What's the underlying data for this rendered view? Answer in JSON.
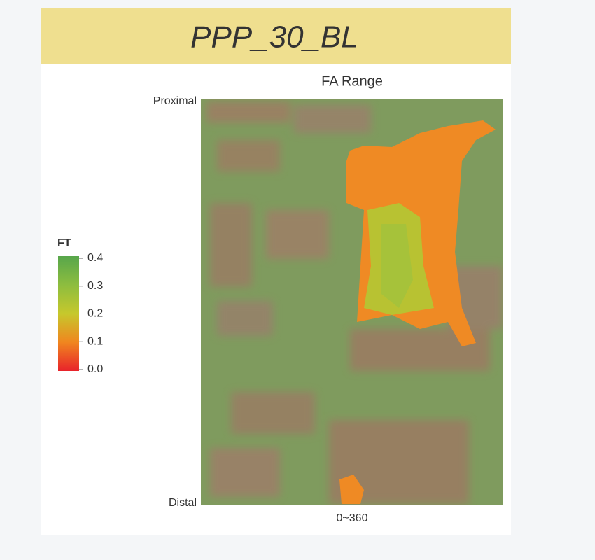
{
  "chart_data": {
    "type": "heatmap",
    "title": "PPP_30_BL",
    "subtitle": "FA Range",
    "x_label": "0~360",
    "y_top_label": "Proximal",
    "y_bottom_label": "Distal",
    "colorbar": {
      "title": "FT",
      "clim": [
        0,
        0.4
      ],
      "ticks": [
        {
          "value": 0,
          "label": "0.0"
        },
        0.1,
        0.2,
        0.3,
        0.4
      ],
      "colors": [
        "#e8232b",
        "#f0861f",
        "#c6c82c",
        "#8dbd3f",
        "#57a64b"
      ]
    }
  }
}
